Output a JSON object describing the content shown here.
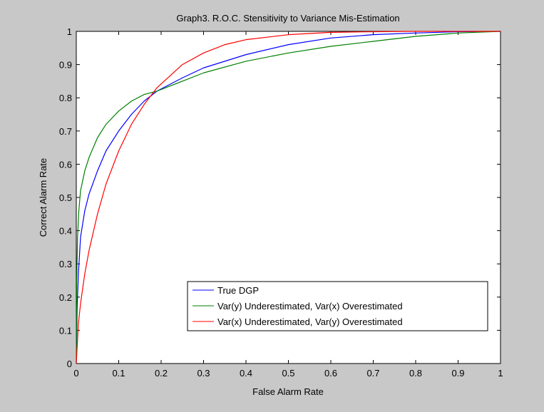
{
  "chart_data": {
    "type": "line",
    "title": "Graph3. R.O.C. Stensitivity to Variance Mis-Estimation",
    "xlabel": "False Alarm Rate",
    "ylabel": "Correct Alarm Rate",
    "xlim": [
      0,
      1
    ],
    "ylim": [
      0,
      1
    ],
    "xticks": [
      "0",
      "0.1",
      "0.2",
      "0.3",
      "0.4",
      "0.5",
      "0.6",
      "0.7",
      "0.8",
      "0.9",
      "1"
    ],
    "yticks": [
      "0",
      "0.1",
      "0.2",
      "0.3",
      "0.4",
      "0.5",
      "0.6",
      "0.7",
      "0.8",
      "0.9",
      "1"
    ],
    "grid": false,
    "legend_position": "bottom-right",
    "series": [
      {
        "name": "True DGP",
        "color": "#0000ff",
        "x": [
          0,
          0.002,
          0.005,
          0.01,
          0.02,
          0.03,
          0.05,
          0.07,
          0.1,
          0.13,
          0.16,
          0.19,
          0.25,
          0.3,
          0.4,
          0.5,
          0.6,
          0.7,
          0.8,
          0.9,
          1.0
        ],
        "y": [
          0,
          0.17,
          0.27,
          0.38,
          0.46,
          0.51,
          0.58,
          0.64,
          0.7,
          0.75,
          0.79,
          0.82,
          0.86,
          0.89,
          0.93,
          0.96,
          0.98,
          0.99,
          0.995,
          0.999,
          1.0
        ]
      },
      {
        "name": "Var(y) Underestimated, Var(x) Overestimated",
        "color": "#008000",
        "x": [
          0,
          0.001,
          0.003,
          0.006,
          0.01,
          0.02,
          0.03,
          0.05,
          0.07,
          0.1,
          0.13,
          0.16,
          0.19,
          0.25,
          0.3,
          0.4,
          0.5,
          0.6,
          0.7,
          0.8,
          0.9,
          1.0
        ],
        "y": [
          0,
          0.25,
          0.38,
          0.46,
          0.52,
          0.58,
          0.62,
          0.68,
          0.72,
          0.76,
          0.79,
          0.81,
          0.82,
          0.85,
          0.875,
          0.91,
          0.935,
          0.955,
          0.97,
          0.985,
          0.995,
          1.0
        ]
      },
      {
        "name": "Var(x) Underestimated, Var(y) Overestimated",
        "color": "#ff0000",
        "x": [
          0,
          0.005,
          0.01,
          0.02,
          0.03,
          0.05,
          0.07,
          0.1,
          0.13,
          0.16,
          0.19,
          0.22,
          0.25,
          0.3,
          0.35,
          0.4,
          0.5,
          0.6,
          0.7,
          0.8,
          0.9,
          1.0
        ],
        "y": [
          0,
          0.12,
          0.18,
          0.27,
          0.34,
          0.45,
          0.54,
          0.64,
          0.72,
          0.78,
          0.83,
          0.865,
          0.9,
          0.935,
          0.96,
          0.975,
          0.99,
          0.997,
          0.999,
          1.0,
          1.0,
          1.0
        ]
      }
    ]
  }
}
